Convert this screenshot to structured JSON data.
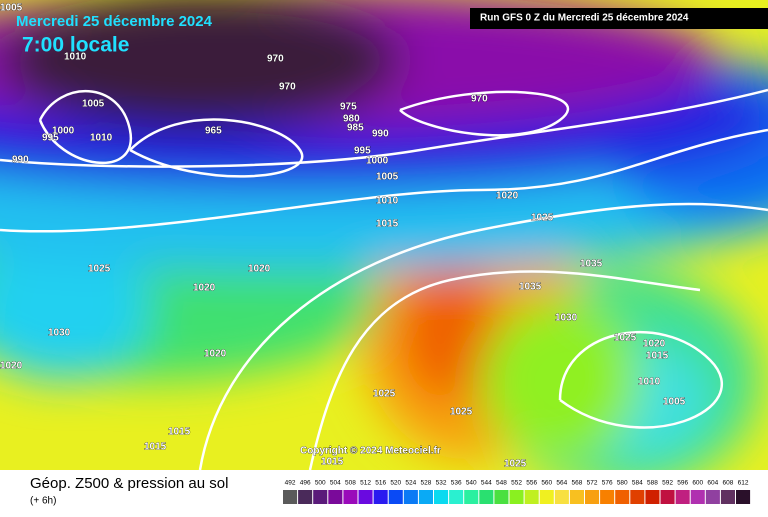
{
  "header": {
    "date": "Mercredi 25 décembre 2024",
    "time": "7:00 locale",
    "run": "Run GFS 0 Z du Mercredi 25 décembre 2024"
  },
  "copyright": "Copyright © 2024 Meteociel.fr",
  "footer": {
    "title": "Géop. Z500 & pression au sol",
    "step": "(+ 6h)"
  },
  "isobar_labels": [
    "1005",
    "1010",
    "970",
    "970",
    "970",
    "1005",
    "1000",
    "995",
    "1010",
    "965",
    "975",
    "980",
    "985",
    "990",
    "995",
    "1000",
    "990",
    "1005",
    "1010",
    "1015",
    "1020",
    "1025",
    "1025",
    "1020",
    "1020",
    "1035",
    "1035",
    "1030",
    "1030",
    "1025",
    "1020",
    "1015",
    "1020",
    "1020",
    "1010",
    "1005",
    "1025",
    "1025",
    "1015",
    "1015",
    "1015",
    "1025"
  ],
  "legend": {
    "ticks": [
      492,
      496,
      500,
      504,
      508,
      512,
      516,
      520,
      524,
      528,
      532,
      536,
      540,
      544,
      548,
      552,
      556,
      560,
      564,
      568,
      572,
      576,
      580,
      584,
      588,
      592,
      596,
      600,
      604,
      608,
      612
    ],
    "colors": [
      "#5a5a5a",
      "#4a2a5a",
      "#5a1a7a",
      "#7a0a9a",
      "#9a0aba",
      "#6a0ae0",
      "#2a1af0",
      "#0a4af5",
      "#0a7af5",
      "#0aaaf5",
      "#0adaf0",
      "#2af0d0",
      "#2af0a0",
      "#2ae070",
      "#4ae040",
      "#8af020",
      "#c0f020",
      "#f0f020",
      "#f8e040",
      "#f8c020",
      "#f8a010",
      "#f88000",
      "#f06000",
      "#e04000",
      "#d02000",
      "#c01040",
      "#c02080",
      "#b030b0",
      "#9040a0",
      "#603060",
      "#2a102a"
    ]
  }
}
